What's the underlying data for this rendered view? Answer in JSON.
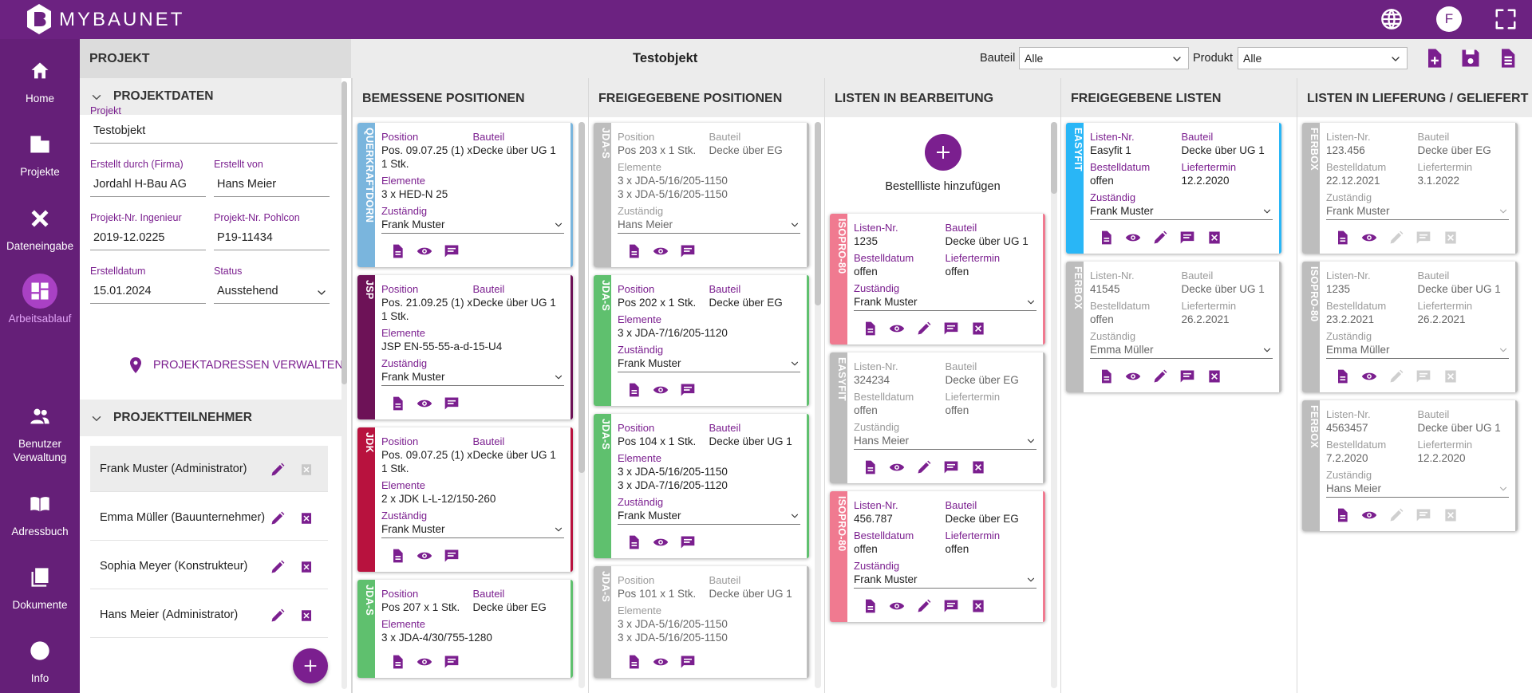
{
  "header": {
    "logo": "MYBAUNET",
    "avatar": "F"
  },
  "nav": [
    "Home",
    "Projekte",
    "Dateneingabe",
    "Arbeitsablauf",
    "Benutzer Verwaltung",
    "Adressbuch",
    "Dokumente",
    "Info"
  ],
  "nav_active": 3,
  "toolbar": {
    "section": "PROJEKT",
    "object": "Testobjekt",
    "filters": [
      {
        "label": "Bauteil",
        "value": "Alle"
      },
      {
        "label": "Produkt",
        "value": "Alle"
      }
    ]
  },
  "project": {
    "data_title": "PROJEKTDATEN",
    "fields": [
      [
        {
          "label": "Projekt",
          "value": "Testobjekt"
        }
      ],
      [
        {
          "label": "Erstellt durch (Firma)",
          "value": "Jordahl H-Bau AG"
        },
        {
          "label": "Erstellt von",
          "value": "Hans Meier"
        }
      ],
      [
        {
          "label": "Projekt-Nr. Ingenieur",
          "value": "2019-12.0225"
        },
        {
          "label": "Projekt-Nr. Pohlcon",
          "value": "P19-11434"
        }
      ],
      [
        {
          "label": "Erstelldatum",
          "value": "15.01.2024"
        },
        {
          "label": "Status",
          "value": "Ausstehend"
        }
      ]
    ],
    "address_button": "PROJEKTADRESSEN VERWALTEN",
    "members_title": "PROJEKTTEILNEHMER",
    "members": [
      "Frank Muster (Administrator)",
      "Emma Müller (Bauunternehmer)",
      "Sophia Meyer (Konstrukteur)",
      "Hans Meier (Administrator)"
    ]
  },
  "columns": [
    {
      "title": "BEMESSENE POSITIONEN",
      "cards": [
        {
          "tag": "QUERKRAFTDORN",
          "color": "#7ab5dd",
          "muted": false,
          "rows": [
            [
              {
                "label": "Position",
                "value": "Pos. 09.07.25 (1) x 1 Stk."
              },
              {
                "label": "Bauteil",
                "value": "Decke über UG 1"
              }
            ],
            [
              {
                "label": "Elemente",
                "value": [
                  "3 x HED-N 25"
                ]
              }
            ],
            [
              {
                "label": "Zuständig",
                "value": "Frank Muster"
              }
            ]
          ]
        },
        {
          "tag": "JSP",
          "color": "#6d1257",
          "muted": false,
          "rows": [
            [
              {
                "label": "Position",
                "value": "Pos. 21.09.25 (1) x 1 Stk."
              },
              {
                "label": "Bauteil",
                "value": "Decke über UG 1"
              }
            ],
            [
              {
                "label": "Elemente",
                "value": [
                  "JSP EN-55-55-a-d-15-U4"
                ]
              }
            ],
            [
              {
                "label": "Zuständig",
                "value": "Frank Muster"
              }
            ]
          ]
        },
        {
          "tag": "JDK",
          "color": "#b8123e",
          "muted": false,
          "rows": [
            [
              {
                "label": "Position",
                "value": "Pos. 09.07.25 (1) x 1 Stk."
              },
              {
                "label": "Bauteil",
                "value": "Decke über UG 1"
              }
            ],
            [
              {
                "label": "Elemente",
                "value": [
                  "2 x JDK L-L-12/150-260"
                ]
              }
            ],
            [
              {
                "label": "Zuständig",
                "value": "Frank Muster"
              }
            ]
          ]
        },
        {
          "tag": "JDA-S",
          "color": "#5fc06e",
          "muted": false,
          "rows": [
            [
              {
                "label": "Position",
                "value": "Pos 207 x 1 Stk."
              },
              {
                "label": "Bauteil",
                "value": "Decke über EG"
              }
            ],
            [
              {
                "label": "Elemente",
                "value": [
                  "3 x JDA-4/30/755-1280"
                ]
              }
            ]
          ]
        }
      ]
    },
    {
      "title": "FREIGEGEBENE POSITIONEN",
      "cards": [
        {
          "tag": "JDA-S",
          "color": "#bdbdbd",
          "muted": true,
          "rows": [
            [
              {
                "label": "Position",
                "value": "Pos 203 x 1 Stk."
              },
              {
                "label": "Bauteil",
                "value": "Decke über EG"
              }
            ],
            [
              {
                "label": "Elemente",
                "value": [
                  "3 x JDA-5/16/205-1150",
                  "3 x JDA-5/16/205-1150"
                ]
              }
            ],
            [
              {
                "label": "Zuständig",
                "value": "Hans Meier"
              }
            ]
          ]
        },
        {
          "tag": "JDA-S",
          "color": "#5fc06e",
          "muted": false,
          "rows": [
            [
              {
                "label": "Position",
                "value": "Pos 202 x 1 Stk."
              },
              {
                "label": "Bauteil",
                "value": "Decke über EG"
              }
            ],
            [
              {
                "label": "Elemente",
                "value": [
                  "3 x JDA-7/16/205-1120"
                ]
              }
            ],
            [
              {
                "label": "Zuständig",
                "value": "Frank Muster"
              }
            ]
          ]
        },
        {
          "tag": "JDA-S",
          "color": "#5fc06e",
          "muted": false,
          "rows": [
            [
              {
                "label": "Position",
                "value": "Pos 104 x 1 Stk."
              },
              {
                "label": "Bauteil",
                "value": "Decke über UG 1"
              }
            ],
            [
              {
                "label": "Elemente",
                "value": [
                  "3 x JDA-5/16/205-1150",
                  "3 x JDA-7/16/205-1120"
                ]
              }
            ],
            [
              {
                "label": "Zuständig",
                "value": "Frank Muster"
              }
            ]
          ]
        },
        {
          "tag": "JDA-S",
          "color": "#bdbdbd",
          "muted": true,
          "rows": [
            [
              {
                "label": "Position",
                "value": "Pos 101 x 1 Stk."
              },
              {
                "label": "Bauteil",
                "value": "Decke über UG 1"
              }
            ],
            [
              {
                "label": "Elemente",
                "value": [
                  "3 x JDA-5/16/205-1150",
                  "3 x JDA-5/16/205-1150"
                ]
              }
            ]
          ]
        }
      ]
    },
    {
      "title": "LISTEN IN BEARBEITUNG",
      "add_label": "Bestellliste hinzufügen",
      "cards": [
        {
          "tag": "ISOPRO-80",
          "color": "#f07a90",
          "muted": false,
          "rows": [
            [
              {
                "label": "Listen-Nr.",
                "value": "1235"
              },
              {
                "label": "Bauteil",
                "value": "Decke über UG 1"
              }
            ],
            [
              {
                "label": "Bestelldatum",
                "value": "offen"
              },
              {
                "label": "Liefertermin",
                "value": "offen"
              }
            ],
            [
              {
                "label": "Zuständig",
                "value": "Frank Muster"
              }
            ]
          ]
        },
        {
          "tag": "EASYFIT",
          "color": "#bdbdbd",
          "muted": true,
          "rows": [
            [
              {
                "label": "Listen-Nr.",
                "value": "324234"
              },
              {
                "label": "Bauteil",
                "value": "Decke über EG"
              }
            ],
            [
              {
                "label": "Bestelldatum",
                "value": "offen"
              },
              {
                "label": "Liefertermin",
                "value": "offen"
              }
            ],
            [
              {
                "label": "Zuständig",
                "value": "Hans Meier"
              }
            ]
          ]
        },
        {
          "tag": "ISOPRO-80",
          "color": "#f07a90",
          "muted": false,
          "rows": [
            [
              {
                "label": "Listen-Nr.",
                "value": "456.787"
              },
              {
                "label": "Bauteil",
                "value": "Decke über EG"
              }
            ],
            [
              {
                "label": "Bestelldatum",
                "value": "offen"
              },
              {
                "label": "Liefertermin",
                "value": "offen"
              }
            ],
            [
              {
                "label": "Zuständig",
                "value": "Frank Muster"
              }
            ]
          ]
        }
      ]
    },
    {
      "title": "FREIGEGEBENE LISTEN",
      "cards": [
        {
          "tag": "EASYFIT",
          "color": "#29b6f6",
          "muted": false,
          "rows": [
            [
              {
                "label": "Listen-Nr.",
                "value": "Easyfit 1"
              },
              {
                "label": "Bauteil",
                "value": "Decke über UG 1"
              }
            ],
            [
              {
                "label": "Bestelldatum",
                "value": "offen"
              },
              {
                "label": "Liefertermin",
                "value": "12.2.2020"
              }
            ],
            [
              {
                "label": "Zuständig",
                "value": "Frank Muster"
              }
            ]
          ]
        },
        {
          "tag": "FERBOX",
          "color": "#bdbdbd",
          "muted": true,
          "rows": [
            [
              {
                "label": "Listen-Nr.",
                "value": "41545"
              },
              {
                "label": "Bauteil",
                "value": "Decke über UG 1"
              }
            ],
            [
              {
                "label": "Bestelldatum",
                "value": "offen"
              },
              {
                "label": "Liefertermin",
                "value": "26.2.2021"
              }
            ],
            [
              {
                "label": "Zuständig",
                "value": "Emma Müller"
              }
            ]
          ]
        }
      ]
    },
    {
      "title": "LISTEN IN LIEFERUNG / GELIEFERT",
      "cards": [
        {
          "tag": "FERBOX",
          "color": "#bdbdbd",
          "muted": true,
          "rows": [
            [
              {
                "label": "Listen-Nr.",
                "value": "123.456"
              },
              {
                "label": "Bauteil",
                "value": "Decke über EG"
              }
            ],
            [
              {
                "label": "Bestelldatum",
                "value": "22.12.2021"
              },
              {
                "label": "Liefertermin",
                "value": "3.1.2022"
              }
            ],
            [
              {
                "label": "Zuständig",
                "value": "Frank Muster"
              }
            ]
          ]
        },
        {
          "tag": "ISOPRO-80",
          "color": "#bdbdbd",
          "muted": true,
          "rows": [
            [
              {
                "label": "Listen-Nr.",
                "value": "1235"
              },
              {
                "label": "Bauteil",
                "value": "Decke über UG 1"
              }
            ],
            [
              {
                "label": "Bestelldatum",
                "value": "23.2.2021"
              },
              {
                "label": "Liefertermin",
                "value": "26.2.2021"
              }
            ],
            [
              {
                "label": "Zuständig",
                "value": "Emma Müller"
              }
            ]
          ]
        },
        {
          "tag": "FERBOX",
          "color": "#bdbdbd",
          "muted": true,
          "rows": [
            [
              {
                "label": "Listen-Nr.",
                "value": "4563457"
              },
              {
                "label": "Bauteil",
                "value": "Decke über UG 1"
              }
            ],
            [
              {
                "label": "Bestelldatum",
                "value": "7.2.2020"
              },
              {
                "label": "Liefertermin",
                "value": "12.2.2020"
              }
            ],
            [
              {
                "label": "Zuständig",
                "value": "Hans Meier"
              }
            ]
          ]
        }
      ]
    }
  ]
}
